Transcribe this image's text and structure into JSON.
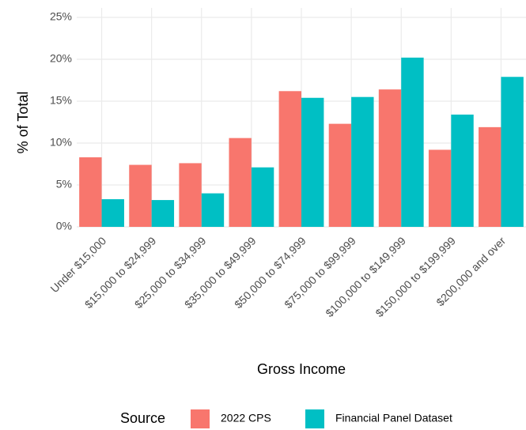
{
  "chart_data": {
    "type": "bar",
    "x_label": "Gross Income",
    "y_label": "% of Total",
    "legend_title": "Source",
    "categories": [
      "Under $15,000",
      "$15,000 to $24,999",
      "$25,000 to $34,999",
      "$35,000 to $49,999",
      "$50,000 to $74,999",
      "$75,000 to $99,999",
      "$100,000 to $149,999",
      "$150,000 to $199,999",
      "$200,000 and over"
    ],
    "series": [
      {
        "name": "2022 CPS",
        "color": "#F8766D",
        "values": [
          8.3,
          7.4,
          7.6,
          10.6,
          16.2,
          12.3,
          16.4,
          9.2,
          11.9
        ]
      },
      {
        "name": "Financial Panel Dataset",
        "color": "#00BFC4",
        "values": [
          3.3,
          3.2,
          4.0,
          7.1,
          15.4,
          15.5,
          20.2,
          13.4,
          17.9
        ]
      }
    ],
    "ylim": [
      0,
      25
    ],
    "yticks": [
      {
        "value": 0,
        "label": "0%"
      },
      {
        "value": 5,
        "label": "5%"
      },
      {
        "value": 10,
        "label": "10%"
      },
      {
        "value": 15,
        "label": "15%"
      },
      {
        "value": 20,
        "label": "20%"
      },
      {
        "value": 25,
        "label": "25%"
      }
    ],
    "grid": true,
    "legend_position": "bottom"
  }
}
